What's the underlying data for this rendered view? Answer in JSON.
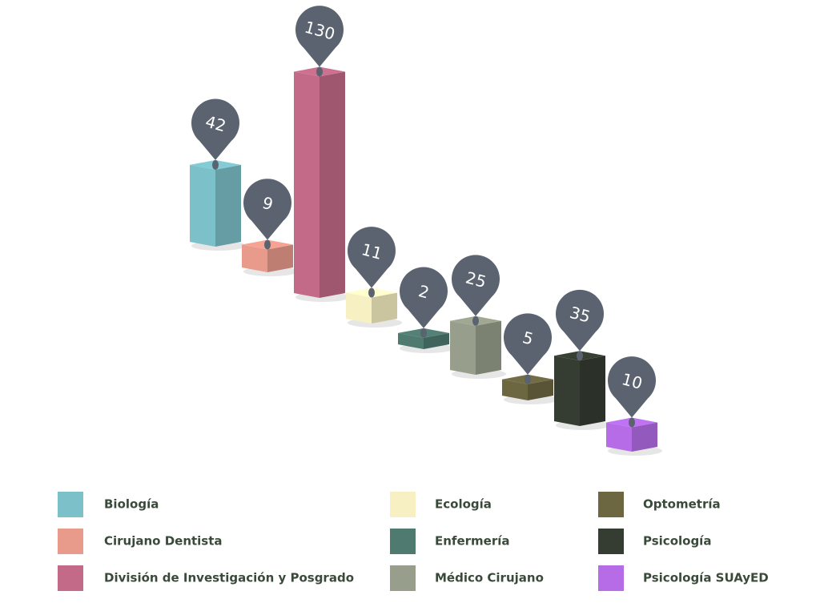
{
  "chart_data": {
    "type": "bar",
    "categories": [
      "Biología",
      "Cirujano Dentista",
      "División de Investigación y Posgrado",
      "Ecología",
      "Enfermería",
      "Médico Cirujano",
      "Optometría",
      "Psicología",
      "Psicología SUAyED"
    ],
    "values": [
      42,
      9,
      130,
      11,
      2,
      25,
      5,
      35,
      10
    ],
    "colors": [
      "#7cc0c9",
      "#e89a8b",
      "#c26a88",
      "#f6f0c2",
      "#4e7a70",
      "#979e8b",
      "#6c6741",
      "#353c31",
      "#b56ce6"
    ],
    "legend": "bottom"
  }
}
